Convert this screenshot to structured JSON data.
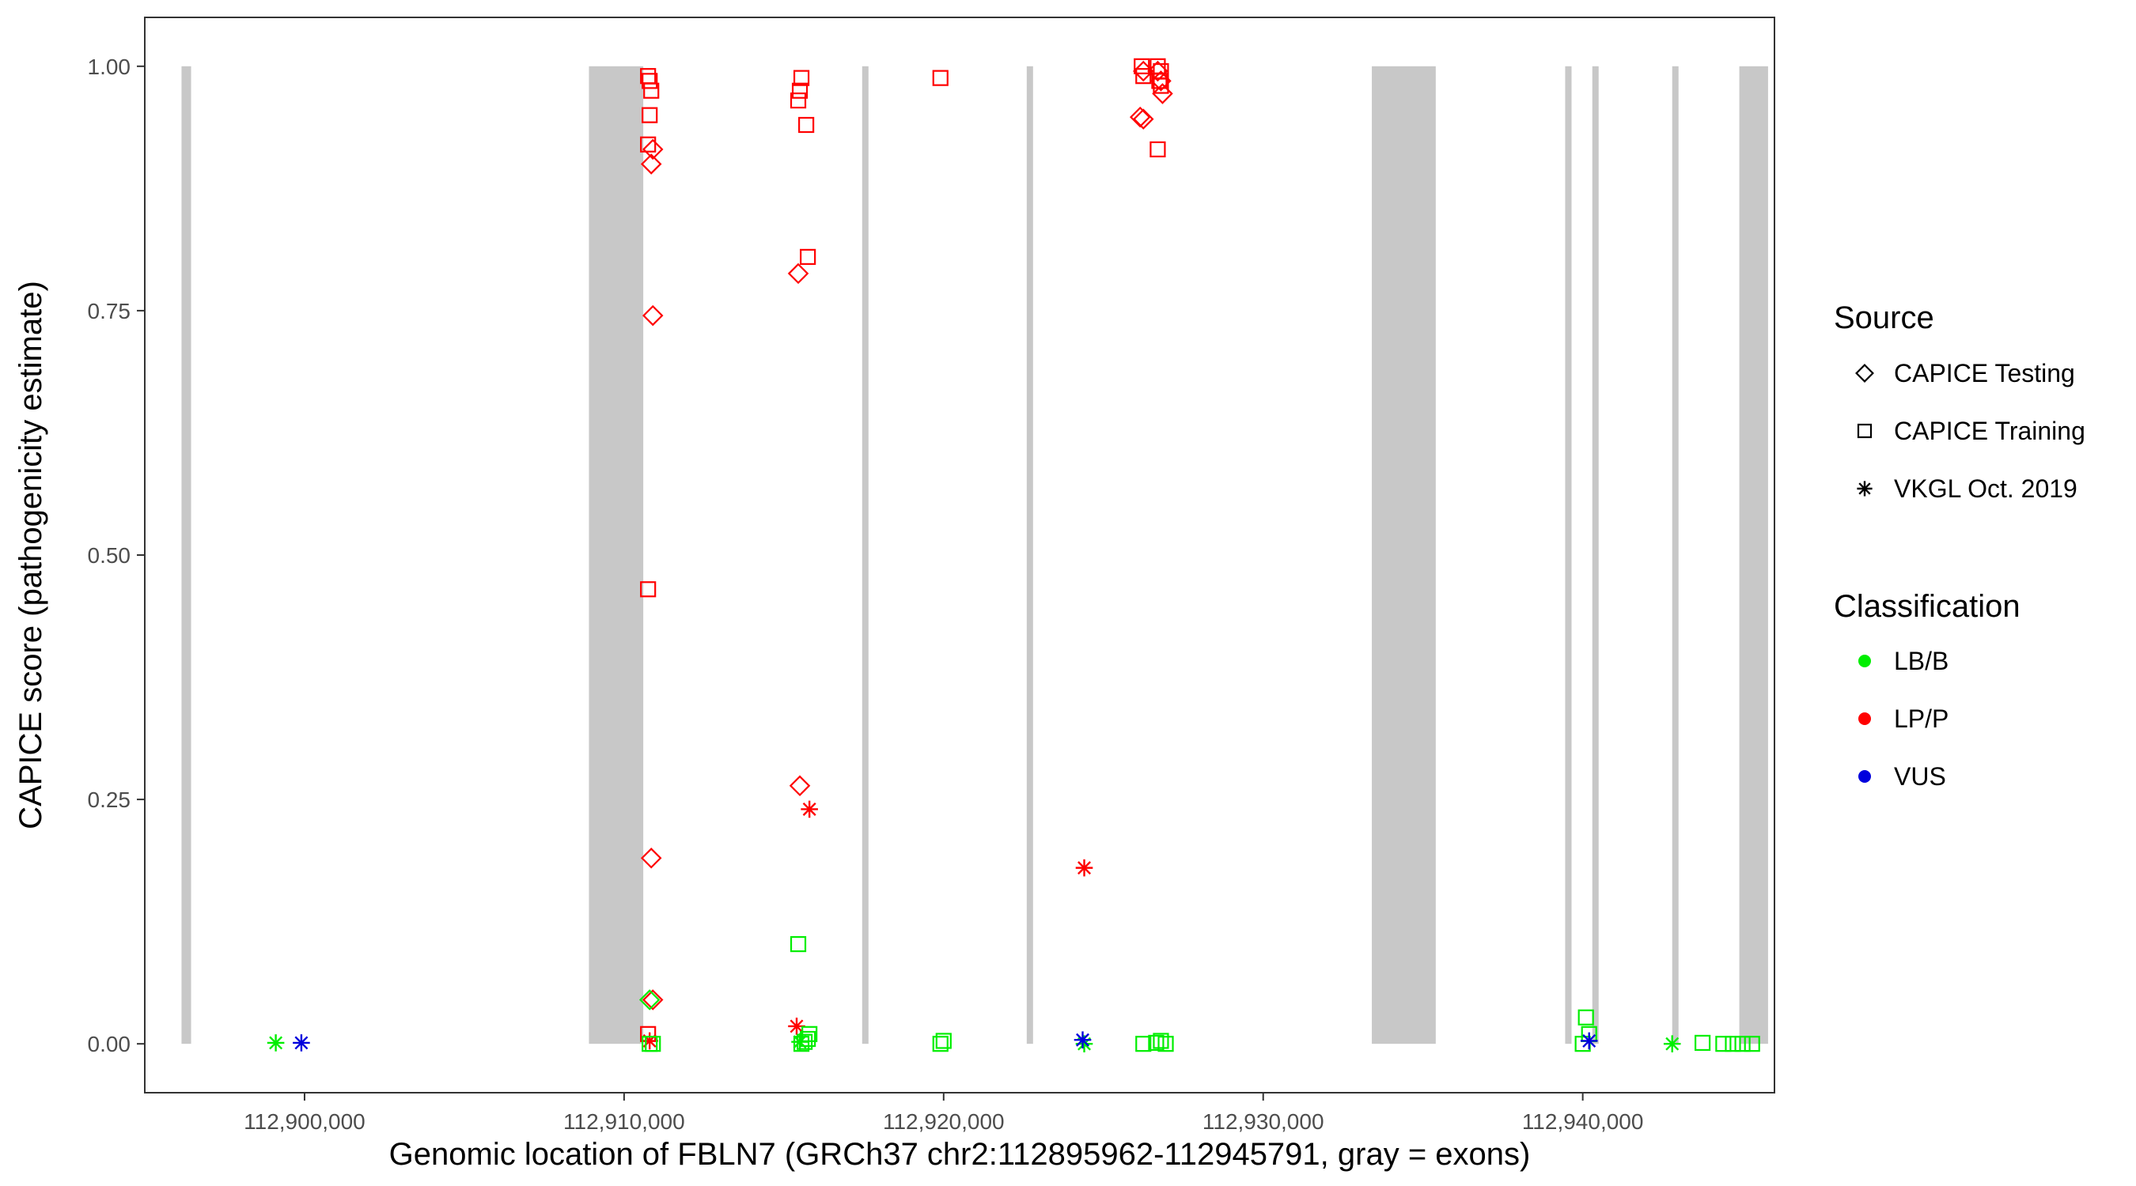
{
  "chart_data": {
    "type": "scatter",
    "title": "",
    "xlabel": "Genomic location of FBLN7 (GRCh37 chr2:112895962-112945791, gray = exons)",
    "ylabel": "CAPICE score (pathogenicity estimate)",
    "xlim": [
      112895000,
      112946000
    ],
    "ylim": [
      -0.05,
      1.05
    ],
    "x_ticks": [
      112900000,
      112910000,
      112920000,
      112930000,
      112940000
    ],
    "x_tick_labels": [
      "112,900,000",
      "112,910,000",
      "112,920,000",
      "112,930,000",
      "112,940,000"
    ],
    "y_ticks": [
      0,
      0.25,
      0.5,
      0.75,
      1.0
    ],
    "y_tick_labels": [
      "0.00",
      "0.25",
      "0.50",
      "0.75",
      "1.00"
    ],
    "grid": false,
    "legend_position": "right",
    "exons": [
      [
        112896150,
        112896450
      ],
      [
        112908900,
        112910600
      ],
      [
        112917450,
        112917550
      ],
      [
        112922600,
        112922700
      ],
      [
        112933400,
        112935400
      ],
      [
        112939450,
        112939650
      ],
      [
        112940300,
        112940400
      ],
      [
        112942800,
        112942900
      ],
      [
        112944900,
        112945800
      ]
    ],
    "exon_color": "#c8c8c8",
    "colors": {
      "LB/B": "#00ee00",
      "LP/P": "#ff0000",
      "VUS": "#0000dd"
    },
    "legend": {
      "source_title": "Source",
      "source_items": [
        {
          "label": "CAPICE Testing",
          "shape": "diamond"
        },
        {
          "label": "CAPICE Training",
          "shape": "square"
        },
        {
          "label": "VKGL Oct. 2019",
          "shape": "asterisk"
        }
      ],
      "class_title": "Classification",
      "class_items": [
        {
          "label": "LB/B",
          "color": "#00ee00"
        },
        {
          "label": "LP/P",
          "color": "#ff0000"
        },
        {
          "label": "VUS",
          "color": "#0000dd"
        }
      ]
    },
    "series": [
      {
        "source": "CAPICE Training",
        "classification": "LP/P",
        "points": [
          [
            112910750,
            0.99
          ],
          [
            112910800,
            0.985
          ],
          [
            112910850,
            0.975
          ],
          [
            112910800,
            0.95
          ],
          [
            112910750,
            0.92
          ],
          [
            112910750,
            0.465
          ],
          [
            112910750,
            0.01
          ],
          [
            112915550,
            0.988
          ],
          [
            112915500,
            0.975
          ],
          [
            112915450,
            0.965
          ],
          [
            112915700,
            0.94
          ],
          [
            112915750,
            0.805
          ],
          [
            112919900,
            0.988
          ],
          [
            112926200,
            1.0
          ],
          [
            112926250,
            0.99
          ],
          [
            112926700,
            1.0
          ],
          [
            112926800,
            0.995
          ],
          [
            112926750,
            0.985
          ],
          [
            112926800,
            0.98
          ],
          [
            112926700,
            0.915
          ]
        ]
      },
      {
        "source": "CAPICE Testing",
        "classification": "LP/P",
        "points": [
          [
            112910900,
            0.915
          ],
          [
            112910850,
            0.9
          ],
          [
            112910900,
            0.745
          ],
          [
            112910850,
            0.19
          ],
          [
            112910900,
            0.045
          ],
          [
            112915450,
            0.788
          ],
          [
            112915500,
            0.264
          ],
          [
            112926250,
            0.995
          ],
          [
            112926150,
            0.948
          ],
          [
            112926250,
            0.946
          ],
          [
            112926700,
            0.995
          ],
          [
            112926800,
            0.985
          ],
          [
            112926850,
            0.972
          ]
        ]
      },
      {
        "source": "VKGL Oct. 2019",
        "classification": "LP/P",
        "points": [
          [
            112910800,
            0.003
          ],
          [
            112915400,
            0.018
          ],
          [
            112915800,
            0.24
          ],
          [
            112924400,
            0.18
          ]
        ]
      },
      {
        "source": "CAPICE Training",
        "classification": "LB/B",
        "points": [
          [
            112910800,
            0.0
          ],
          [
            112910900,
            0.0
          ],
          [
            112915450,
            0.102
          ],
          [
            112915550,
            0.0
          ],
          [
            112915650,
            0.002
          ],
          [
            112915750,
            0.005
          ],
          [
            112915800,
            0.01
          ],
          [
            112919900,
            0.0
          ],
          [
            112920000,
            0.003
          ],
          [
            112926250,
            0.0
          ],
          [
            112926650,
            0.001
          ],
          [
            112926800,
            0.003
          ],
          [
            112926950,
            0.0
          ],
          [
            112940000,
            0.0
          ],
          [
            112940100,
            0.027
          ],
          [
            112940200,
            0.01
          ],
          [
            112943750,
            0.001
          ],
          [
            112944400,
            0.0
          ],
          [
            112944700,
            0.0
          ],
          [
            112945000,
            0.0
          ],
          [
            112945300,
            0.0
          ]
        ]
      },
      {
        "source": "CAPICE Testing",
        "classification": "LB/B",
        "points": [
          [
            112910800,
            0.045
          ]
        ]
      },
      {
        "source": "VKGL Oct. 2019",
        "classification": "LB/B",
        "points": [
          [
            112899100,
            0.001
          ],
          [
            112915500,
            0.002
          ],
          [
            112924400,
            0.0
          ],
          [
            112942800,
            0.0
          ]
        ]
      },
      {
        "source": "VKGL Oct. 2019",
        "classification": "VUS",
        "points": [
          [
            112899900,
            0.001
          ],
          [
            112924350,
            0.004
          ],
          [
            112940200,
            0.003
          ]
        ]
      }
    ]
  }
}
